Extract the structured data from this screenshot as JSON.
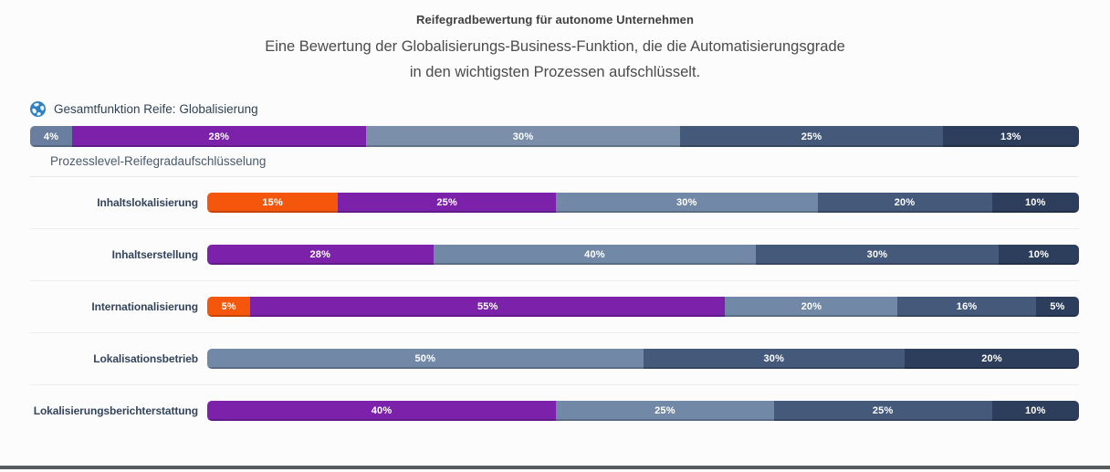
{
  "header": {
    "title": "Reifegradbewertung für autonome Unternehmen",
    "subtitle": "Eine Bewertung der Globalisierungs-Business-Funktion, die die Automatisierungsgrade in den wichtigsten Prozessen aufschlüsselt."
  },
  "overall": {
    "icon": "globe-icon",
    "label": "Gesamtfunktion Reife: Globalisierung"
  },
  "breakdown": {
    "label": "Prozesslevel-Reifegradaufschlüsselung"
  },
  "colors": {
    "level1_orange": "#f4570c",
    "level2_purple": "#7b21aa",
    "level3_light_slate": "#7189a6",
    "level4_slate": "#45597b",
    "level5_navy": "#2c3e5b",
    "overall_level1_gray": "#6a7fa0",
    "overall_level3_slate": "#7b8fab",
    "globe_blue": "#2f80c3",
    "background": "#fcfcfc"
  },
  "chart_data": {
    "type": "bar",
    "orientation": "horizontal",
    "stacked": true,
    "unit": "%",
    "grid": false,
    "legend": "none",
    "palette": {
      "level1": "#f4570c",
      "level2": "#7b21aa",
      "level3": "#7189a6",
      "level4": "#45597b",
      "level5": "#2c3e5b",
      "overall_level1": "#6a7fa0",
      "overall_level3": "#7b8fab"
    },
    "overall": {
      "label": "Gesamtfunktion Reife: Globalisierung",
      "segments": [
        {
          "value": 4,
          "label": "4%",
          "level": "overall_level1"
        },
        {
          "value": 28,
          "label": "28%",
          "level": "level2"
        },
        {
          "value": 30,
          "label": "30%",
          "level": "overall_level3"
        },
        {
          "value": 25,
          "label": "25%",
          "level": "level4"
        },
        {
          "value": 13,
          "label": "13%",
          "level": "level5"
        }
      ]
    },
    "rows": [
      {
        "category": "Inhaltslokalisierung",
        "segments": [
          {
            "value": 15,
            "label": "15%",
            "level": "level1"
          },
          {
            "value": 25,
            "label": "25%",
            "level": "level2"
          },
          {
            "value": 30,
            "label": "30%",
            "level": "level3"
          },
          {
            "value": 20,
            "label": "20%",
            "level": "level4"
          },
          {
            "value": 10,
            "label": "10%",
            "level": "level5"
          }
        ]
      },
      {
        "category": "Inhaltserstellung",
        "segments": [
          {
            "value": 28,
            "label": "28%",
            "level": "level2"
          },
          {
            "value": 40,
            "label": "40%",
            "level": "level3"
          },
          {
            "value": 30,
            "label": "30%",
            "level": "level4"
          },
          {
            "value": 10,
            "label": "10%",
            "level": "level5"
          }
        ]
      },
      {
        "category": "Internationalisierung",
        "segments": [
          {
            "value": 5,
            "label": "5%",
            "level": "level1"
          },
          {
            "value": 55,
            "label": "55%",
            "level": "level2"
          },
          {
            "value": 20,
            "label": "20%",
            "level": "level3"
          },
          {
            "value": 16,
            "label": "16%",
            "level": "level4"
          },
          {
            "value": 5,
            "label": "5%",
            "level": "level5"
          }
        ]
      },
      {
        "category": "Lokalisationsbetrieb",
        "segments": [
          {
            "value": 50,
            "label": "50%",
            "level": "level3"
          },
          {
            "value": 30,
            "label": "30%",
            "level": "level4"
          },
          {
            "value": 20,
            "label": "20%",
            "level": "level5"
          }
        ]
      },
      {
        "category": "Lokalisierungsberichterstattung",
        "segments": [
          {
            "value": 40,
            "label": "40%",
            "level": "level2"
          },
          {
            "value": 25,
            "label": "25%",
            "level": "level3"
          },
          {
            "value": 25,
            "label": "25%",
            "level": "level4"
          },
          {
            "value": 10,
            "label": "10%",
            "level": "level5"
          }
        ]
      }
    ]
  }
}
